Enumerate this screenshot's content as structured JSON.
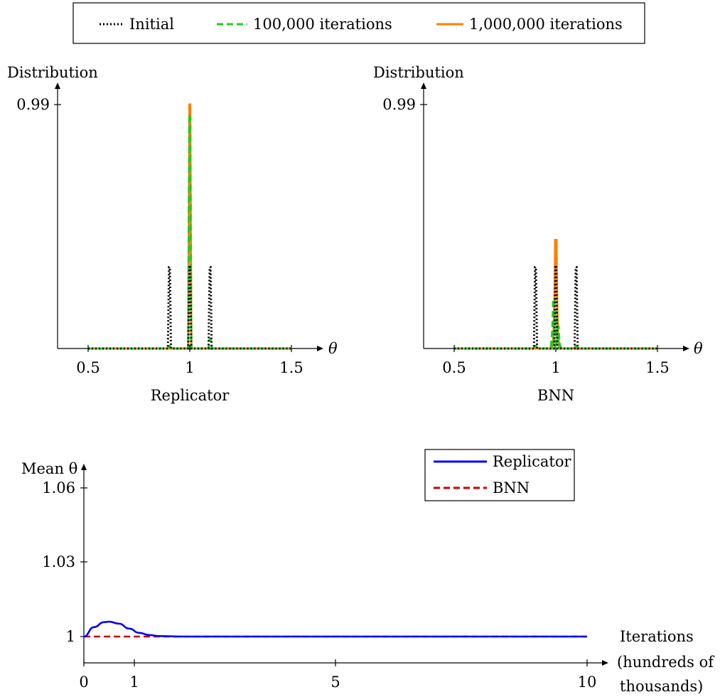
{
  "legend_top": {
    "items": [
      {
        "label": "Initial",
        "color": "#000000",
        "style": "dotted"
      },
      {
        "label": "100,000 iterations",
        "color": "#22cc22",
        "style": "dashed"
      },
      {
        "label": "1,000,000 iterations",
        "color": "#ff8000",
        "style": "solid"
      }
    ]
  },
  "chart_data": [
    {
      "type": "line",
      "title": "Replicator",
      "ylabel": "Distribution",
      "xlabel": "θ",
      "xlim": [
        0.5,
        1.5
      ],
      "xticks": [
        "0.5",
        "1",
        "1.5"
      ],
      "ytick_label": "0.99",
      "grid": false,
      "series": [
        {
          "name": "Initial",
          "color": "#000000",
          "style": "dotted",
          "spikes": [
            {
              "x": 0.9,
              "y": 0.33
            },
            {
              "x": 1.0,
              "y": 0.33
            },
            {
              "x": 1.1,
              "y": 0.33
            }
          ]
        },
        {
          "name": "100,000 iterations",
          "color": "#22cc22",
          "style": "dashed",
          "spikes": [
            {
              "x": 0.9,
              "y": 0.01
            },
            {
              "x": 1.0,
              "y": 0.95
            },
            {
              "x": 1.1,
              "y": 0.04
            }
          ]
        },
        {
          "name": "1,000,000 iterations",
          "color": "#ff8000",
          "style": "solid",
          "spikes": [
            {
              "x": 1.0,
              "y": 0.99
            }
          ]
        }
      ]
    },
    {
      "type": "line",
      "title": "BNN",
      "ylabel": "Distribution",
      "xlabel": "θ",
      "xlim": [
        0.5,
        1.5
      ],
      "xticks": [
        "0.5",
        "1",
        "1.5"
      ],
      "ytick_label": "0.99",
      "grid": false,
      "series": [
        {
          "name": "Initial",
          "color": "#000000",
          "style": "dotted",
          "spikes": [
            {
              "x": 0.9,
              "y": 0.33
            },
            {
              "x": 1.0,
              "y": 0.33
            },
            {
              "x": 1.1,
              "y": 0.33
            }
          ]
        },
        {
          "name": "100,000 iterations",
          "color": "#22cc22",
          "style": "dashed",
          "bumps": [
            {
              "x": 0.9,
              "y": 0.01
            },
            {
              "x": 0.99,
              "y": 0.2
            },
            {
              "x": 1.0,
              "y": 0.15
            },
            {
              "x": 1.01,
              "y": 0.09
            },
            {
              "x": 1.1,
              "y": 0.01
            }
          ]
        },
        {
          "name": "1,000,000 iterations",
          "color": "#ff8000",
          "style": "solid",
          "bumps": [
            {
              "x": 1.0,
              "y": 0.44
            }
          ]
        }
      ]
    },
    {
      "type": "line",
      "ylabel": "Mean θ",
      "xlabel": "Iterations (hundreds of thousands)",
      "xlabel_lines": [
        "Iterations",
        "(hundreds of",
        "thousands)"
      ],
      "xlim": [
        0,
        10
      ],
      "xticks": [
        0,
        1,
        5,
        10
      ],
      "yticks": [
        "1",
        "1.03",
        "1.06"
      ],
      "ylim": [
        1.0,
        1.06
      ],
      "legend": "top-right",
      "grid": false,
      "series": [
        {
          "name": "Replicator",
          "color": "#0000ff",
          "style": "solid",
          "x": [
            0,
            0.2,
            0.4,
            0.5,
            0.7,
            0.9,
            1.1,
            1.3,
            1.5,
            2,
            3,
            5,
            10
          ],
          "y": [
            1.0,
            1.0038,
            1.0058,
            1.006,
            1.0052,
            1.0032,
            1.0015,
            1.0006,
            1.0002,
            1.0,
            1.0,
            1.0,
            1.0
          ]
        },
        {
          "name": "BNN",
          "color": "#cc0000",
          "style": "dashed",
          "x": [
            0,
            2,
            5,
            10
          ],
          "y": [
            1.0,
            1.0,
            1.0,
            1.0
          ]
        }
      ]
    }
  ]
}
